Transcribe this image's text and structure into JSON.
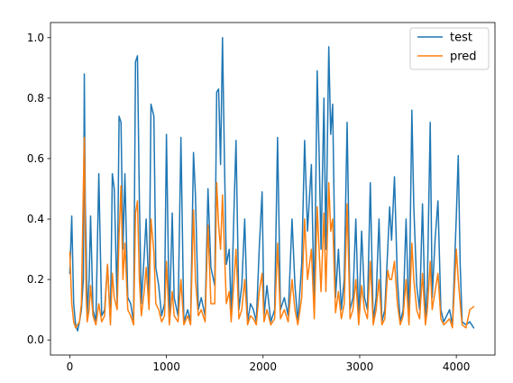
{
  "chart_data": {
    "type": "line",
    "title": "",
    "xlabel": "",
    "ylabel": "",
    "xlim": [
      -200,
      4400
    ],
    "ylim": [
      -0.05,
      1.05
    ],
    "x_ticks": [
      0,
      1000,
      2000,
      3000,
      4000
    ],
    "y_ticks": [
      0.0,
      0.2,
      0.4,
      0.6,
      0.8,
      1.0
    ],
    "x_tick_labels": [
      "0",
      "1000",
      "2000",
      "3000",
      "4000"
    ],
    "y_tick_labels": [
      "0.0",
      "0.2",
      "0.4",
      "0.6",
      "0.8",
      "1.0"
    ],
    "legend_position": "top-right",
    "x_range": [
      0,
      4180
    ],
    "colors": {
      "test": "#1f77b4",
      "pred": "#ff7f0e"
    },
    "series": [
      {
        "name": "test",
        "color": "#1f77b4",
        "points": [
          [
            0,
            0.22
          ],
          [
            20,
            0.41
          ],
          [
            40,
            0.12
          ],
          [
            60,
            0.05
          ],
          [
            80,
            0.03
          ],
          [
            100,
            0.06
          ],
          [
            120,
            0.1
          ],
          [
            140,
            0.2
          ],
          [
            150,
            0.88
          ],
          [
            160,
            0.45
          ],
          [
            170,
            0.3
          ],
          [
            180,
            0.08
          ],
          [
            200,
            0.2
          ],
          [
            215,
            0.41
          ],
          [
            240,
            0.1
          ],
          [
            270,
            0.06
          ],
          [
            300,
            0.55
          ],
          [
            330,
            0.08
          ],
          [
            360,
            0.1
          ],
          [
            390,
            0.25
          ],
          [
            420,
            0.06
          ],
          [
            440,
            0.55
          ],
          [
            460,
            0.5
          ],
          [
            490,
            0.12
          ],
          [
            510,
            0.74
          ],
          [
            530,
            0.72
          ],
          [
            550,
            0.3
          ],
          [
            570,
            0.55
          ],
          [
            600,
            0.14
          ],
          [
            630,
            0.12
          ],
          [
            660,
            0.06
          ],
          [
            680,
            0.92
          ],
          [
            700,
            0.94
          ],
          [
            720,
            0.46
          ],
          [
            740,
            0.12
          ],
          [
            770,
            0.28
          ],
          [
            790,
            0.4
          ],
          [
            820,
            0.14
          ],
          [
            840,
            0.78
          ],
          [
            870,
            0.74
          ],
          [
            890,
            0.24
          ],
          [
            920,
            0.18
          ],
          [
            950,
            0.08
          ],
          [
            980,
            0.12
          ],
          [
            1000,
            0.68
          ],
          [
            1030,
            0.06
          ],
          [
            1060,
            0.42
          ],
          [
            1080,
            0.14
          ],
          [
            1120,
            0.08
          ],
          [
            1150,
            0.67
          ],
          [
            1180,
            0.06
          ],
          [
            1220,
            0.1
          ],
          [
            1250,
            0.06
          ],
          [
            1280,
            0.62
          ],
          [
            1300,
            0.48
          ],
          [
            1330,
            0.1
          ],
          [
            1360,
            0.14
          ],
          [
            1400,
            0.08
          ],
          [
            1430,
            0.5
          ],
          [
            1460,
            0.24
          ],
          [
            1500,
            0.18
          ],
          [
            1520,
            0.82
          ],
          [
            1540,
            0.83
          ],
          [
            1560,
            0.58
          ],
          [
            1580,
            1.0
          ],
          [
            1600,
            0.6
          ],
          [
            1620,
            0.25
          ],
          [
            1650,
            0.3
          ],
          [
            1670,
            0.08
          ],
          [
            1700,
            0.44
          ],
          [
            1720,
            0.66
          ],
          [
            1750,
            0.1
          ],
          [
            1780,
            0.18
          ],
          [
            1810,
            0.4
          ],
          [
            1840,
            0.06
          ],
          [
            1870,
            0.12
          ],
          [
            1900,
            0.1
          ],
          [
            1930,
            0.06
          ],
          [
            1960,
            0.3
          ],
          [
            1990,
            0.49
          ],
          [
            2010,
            0.08
          ],
          [
            2040,
            0.18
          ],
          [
            2080,
            0.06
          ],
          [
            2120,
            0.1
          ],
          [
            2150,
            0.67
          ],
          [
            2180,
            0.1
          ],
          [
            2220,
            0.14
          ],
          [
            2260,
            0.08
          ],
          [
            2300,
            0.4
          ],
          [
            2330,
            0.18
          ],
          [
            2360,
            0.06
          ],
          [
            2400,
            0.25
          ],
          [
            2430,
            0.66
          ],
          [
            2460,
            0.36
          ],
          [
            2500,
            0.58
          ],
          [
            2530,
            0.1
          ],
          [
            2560,
            0.89
          ],
          [
            2580,
            0.62
          ],
          [
            2600,
            0.3
          ],
          [
            2630,
            0.8
          ],
          [
            2650,
            0.3
          ],
          [
            2680,
            0.97
          ],
          [
            2700,
            0.68
          ],
          [
            2720,
            0.78
          ],
          [
            2750,
            0.14
          ],
          [
            2780,
            0.3
          ],
          [
            2810,
            0.1
          ],
          [
            2840,
            0.2
          ],
          [
            2870,
            0.72
          ],
          [
            2900,
            0.1
          ],
          [
            2930,
            0.14
          ],
          [
            2960,
            0.4
          ],
          [
            2990,
            0.06
          ],
          [
            3020,
            0.36
          ],
          [
            3050,
            0.14
          ],
          [
            3080,
            0.1
          ],
          [
            3110,
            0.52
          ],
          [
            3140,
            0.06
          ],
          [
            3170,
            0.14
          ],
          [
            3200,
            0.4
          ],
          [
            3230,
            0.06
          ],
          [
            3260,
            0.1
          ],
          [
            3290,
            0.3
          ],
          [
            3310,
            0.44
          ],
          [
            3330,
            0.33
          ],
          [
            3360,
            0.54
          ],
          [
            3390,
            0.2
          ],
          [
            3420,
            0.06
          ],
          [
            3450,
            0.1
          ],
          [
            3480,
            0.4
          ],
          [
            3510,
            0.06
          ],
          [
            3540,
            0.76
          ],
          [
            3560,
            0.44
          ],
          [
            3590,
            0.18
          ],
          [
            3620,
            0.1
          ],
          [
            3650,
            0.45
          ],
          [
            3680,
            0.06
          ],
          [
            3700,
            0.18
          ],
          [
            3730,
            0.72
          ],
          [
            3750,
            0.14
          ],
          [
            3780,
            0.33
          ],
          [
            3810,
            0.46
          ],
          [
            3840,
            0.1
          ],
          [
            3870,
            0.06
          ],
          [
            3900,
            0.08
          ],
          [
            3930,
            0.1
          ],
          [
            3960,
            0.05
          ],
          [
            4000,
            0.41
          ],
          [
            4020,
            0.61
          ],
          [
            4040,
            0.25
          ],
          [
            4060,
            0.06
          ],
          [
            4100,
            0.05
          ],
          [
            4140,
            0.06
          ],
          [
            4180,
            0.04
          ]
        ]
      },
      {
        "name": "pred",
        "color": "#ff7f0e",
        "points": [
          [
            0,
            0.29
          ],
          [
            20,
            0.12
          ],
          [
            40,
            0.06
          ],
          [
            60,
            0.04
          ],
          [
            80,
            0.05
          ],
          [
            100,
            0.06
          ],
          [
            120,
            0.12
          ],
          [
            140,
            0.5
          ],
          [
            150,
            0.67
          ],
          [
            160,
            0.35
          ],
          [
            170,
            0.14
          ],
          [
            180,
            0.06
          ],
          [
            200,
            0.1
          ],
          [
            215,
            0.18
          ],
          [
            240,
            0.08
          ],
          [
            270,
            0.05
          ],
          [
            300,
            0.12
          ],
          [
            330,
            0.06
          ],
          [
            360,
            0.08
          ],
          [
            390,
            0.25
          ],
          [
            420,
            0.05
          ],
          [
            440,
            0.22
          ],
          [
            460,
            0.14
          ],
          [
            490,
            0.1
          ],
          [
            510,
            0.35
          ],
          [
            530,
            0.51
          ],
          [
            550,
            0.2
          ],
          [
            570,
            0.32
          ],
          [
            600,
            0.1
          ],
          [
            630,
            0.08
          ],
          [
            660,
            0.05
          ],
          [
            680,
            0.42
          ],
          [
            700,
            0.46
          ],
          [
            720,
            0.2
          ],
          [
            740,
            0.08
          ],
          [
            770,
            0.16
          ],
          [
            790,
            0.24
          ],
          [
            820,
            0.1
          ],
          [
            840,
            0.4
          ],
          [
            870,
            0.29
          ],
          [
            890,
            0.12
          ],
          [
            920,
            0.1
          ],
          [
            950,
            0.06
          ],
          [
            980,
            0.08
          ],
          [
            1000,
            0.26
          ],
          [
            1030,
            0.05
          ],
          [
            1060,
            0.16
          ],
          [
            1080,
            0.08
          ],
          [
            1120,
            0.06
          ],
          [
            1150,
            0.2
          ],
          [
            1180,
            0.05
          ],
          [
            1220,
            0.08
          ],
          [
            1250,
            0.05
          ],
          [
            1280,
            0.43
          ],
          [
            1300,
            0.2
          ],
          [
            1330,
            0.08
          ],
          [
            1360,
            0.1
          ],
          [
            1400,
            0.06
          ],
          [
            1430,
            0.38
          ],
          [
            1460,
            0.12
          ],
          [
            1500,
            0.12
          ],
          [
            1520,
            0.52
          ],
          [
            1540,
            0.38
          ],
          [
            1560,
            0.3
          ],
          [
            1580,
            0.48
          ],
          [
            1600,
            0.3
          ],
          [
            1620,
            0.12
          ],
          [
            1650,
            0.16
          ],
          [
            1670,
            0.06
          ],
          [
            1700,
            0.2
          ],
          [
            1720,
            0.3
          ],
          [
            1750,
            0.07
          ],
          [
            1780,
            0.1
          ],
          [
            1810,
            0.2
          ],
          [
            1840,
            0.05
          ],
          [
            1870,
            0.08
          ],
          [
            1900,
            0.07
          ],
          [
            1930,
            0.05
          ],
          [
            1960,
            0.16
          ],
          [
            1990,
            0.22
          ],
          [
            2010,
            0.06
          ],
          [
            2040,
            0.1
          ],
          [
            2080,
            0.05
          ],
          [
            2120,
            0.07
          ],
          [
            2150,
            0.32
          ],
          [
            2180,
            0.07
          ],
          [
            2220,
            0.1
          ],
          [
            2260,
            0.06
          ],
          [
            2300,
            0.2
          ],
          [
            2330,
            0.1
          ],
          [
            2360,
            0.05
          ],
          [
            2400,
            0.14
          ],
          [
            2430,
            0.4
          ],
          [
            2460,
            0.2
          ],
          [
            2500,
            0.3
          ],
          [
            2530,
            0.07
          ],
          [
            2560,
            0.44
          ],
          [
            2580,
            0.3
          ],
          [
            2600,
            0.16
          ],
          [
            2630,
            0.42
          ],
          [
            2650,
            0.16
          ],
          [
            2680,
            0.52
          ],
          [
            2700,
            0.36
          ],
          [
            2720,
            0.4
          ],
          [
            2750,
            0.09
          ],
          [
            2780,
            0.16
          ],
          [
            2810,
            0.07
          ],
          [
            2840,
            0.12
          ],
          [
            2870,
            0.45
          ],
          [
            2900,
            0.07
          ],
          [
            2930,
            0.1
          ],
          [
            2960,
            0.2
          ],
          [
            2990,
            0.05
          ],
          [
            3020,
            0.18
          ],
          [
            3050,
            0.1
          ],
          [
            3080,
            0.07
          ],
          [
            3110,
            0.26
          ],
          [
            3140,
            0.05
          ],
          [
            3170,
            0.1
          ],
          [
            3200,
            0.2
          ],
          [
            3230,
            0.05
          ],
          [
            3260,
            0.07
          ],
          [
            3290,
            0.23
          ],
          [
            3310,
            0.2
          ],
          [
            3330,
            0.2
          ],
          [
            3360,
            0.26
          ],
          [
            3390,
            0.12
          ],
          [
            3420,
            0.05
          ],
          [
            3450,
            0.08
          ],
          [
            3480,
            0.2
          ],
          [
            3510,
            0.05
          ],
          [
            3540,
            0.32
          ],
          [
            3560,
            0.2
          ],
          [
            3590,
            0.1
          ],
          [
            3620,
            0.07
          ],
          [
            3650,
            0.22
          ],
          [
            3680,
            0.05
          ],
          [
            3700,
            0.1
          ],
          [
            3730,
            0.26
          ],
          [
            3750,
            0.1
          ],
          [
            3780,
            0.16
          ],
          [
            3810,
            0.22
          ],
          [
            3840,
            0.07
          ],
          [
            3870,
            0.05
          ],
          [
            3900,
            0.06
          ],
          [
            3930,
            0.07
          ],
          [
            3960,
            0.04
          ],
          [
            4000,
            0.3
          ],
          [
            4020,
            0.2
          ],
          [
            4040,
            0.12
          ],
          [
            4060,
            0.05
          ],
          [
            4100,
            0.04
          ],
          [
            4140,
            0.1
          ],
          [
            4180,
            0.11
          ]
        ]
      }
    ]
  }
}
